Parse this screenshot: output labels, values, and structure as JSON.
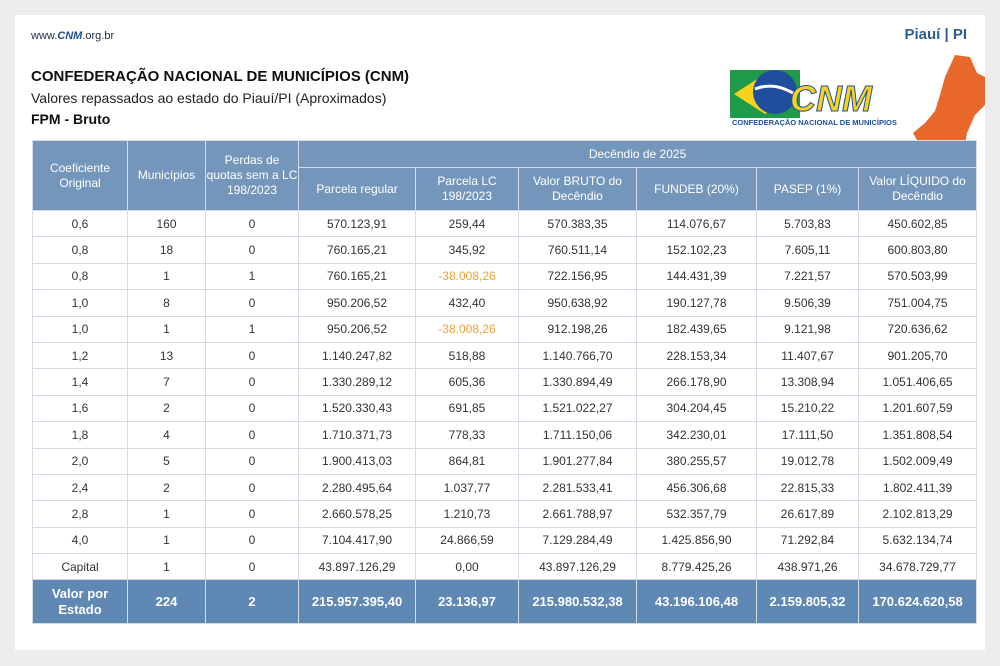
{
  "header": {
    "site": {
      "prefix": "www.",
      "brand": "CNM",
      "suffix": ".org.br"
    },
    "state": "Piauí | PI",
    "title": "CONFEDERAÇÃO NACIONAL DE MUNICÍPIOS (CNM)",
    "subtitle": "Valores repassados ao estado do Piauí/PI (Aproximados)",
    "section": "FPM - Bruto"
  },
  "logo": {
    "name": "CNM",
    "tagline": "CONFEDERAÇÃO NACIONAL DE MUNICÍPIOS"
  },
  "table": {
    "columns": [
      "Coeficiente Original",
      "Municípios",
      "Perdas de quotas sem a LC 198/2023"
    ],
    "group": "Decêndio de 2025",
    "group_columns": [
      "Parcela regular",
      "Parcela LC 198/2023",
      "Valor BRUTO do Decêndio",
      "FUNDEB (20%)",
      "PASEP (1%)",
      "Valor LÍQUIDO do Decêndio"
    ],
    "rows": [
      [
        "0,6",
        "160",
        "0",
        "570.123,91",
        "259,44",
        "570.383,35",
        "114.076,67",
        "5.703,83",
        "450.602,85"
      ],
      [
        "0,8",
        "18",
        "0",
        "760.165,21",
        "345,92",
        "760.511,14",
        "152.102,23",
        "7.605,11",
        "600.803,80"
      ],
      [
        "0,8",
        "1",
        "1",
        "760.165,21",
        "-38.008,26",
        "722.156,95",
        "144.431,39",
        "7.221,57",
        "570.503,99"
      ],
      [
        "1,0",
        "8",
        "0",
        "950.206,52",
        "432,40",
        "950.638,92",
        "190.127,78",
        "9.506,39",
        "751.004,75"
      ],
      [
        "1,0",
        "1",
        "1",
        "950.206,52",
        "-38.008,26",
        "912.198,26",
        "182.439,65",
        "9.121,98",
        "720.636,62"
      ],
      [
        "1,2",
        "13",
        "0",
        "1.140.247,82",
        "518,88",
        "1.140.766,70",
        "228.153,34",
        "11.407,67",
        "901.205,70"
      ],
      [
        "1,4",
        "7",
        "0",
        "1.330.289,12",
        "605,36",
        "1.330.894,49",
        "266.178,90",
        "13.308,94",
        "1.051.406,65"
      ],
      [
        "1,6",
        "2",
        "0",
        "1.520.330,43",
        "691,85",
        "1.521.022,27",
        "304.204,45",
        "15.210,22",
        "1.201.607,59"
      ],
      [
        "1,8",
        "4",
        "0",
        "1.710.371,73",
        "778,33",
        "1.711.150,06",
        "342.230,01",
        "17.111,50",
        "1.351.808,54"
      ],
      [
        "2,0",
        "5",
        "0",
        "1.900.413,03",
        "864,81",
        "1.901.277,84",
        "380.255,57",
        "19.012,78",
        "1.502.009,49"
      ],
      [
        "2,4",
        "2",
        "0",
        "2.280.495,64",
        "1.037,77",
        "2.281.533,41",
        "456.306,68",
        "22.815,33",
        "1.802.411,39"
      ],
      [
        "2,8",
        "1",
        "0",
        "2.660.578,25",
        "1.210,73",
        "2.661.788,97",
        "532.357,79",
        "26.617,89",
        "2.102.813,29"
      ],
      [
        "4,0",
        "1",
        "0",
        "7.104.417,90",
        "24.866,59",
        "7.129.284,49",
        "1.425.856,90",
        "71.292,84",
        "5.632.134,74"
      ],
      [
        "Capital",
        "1",
        "0",
        "43.897.126,29",
        "0,00",
        "43.897.126,29",
        "8.779.425,26",
        "438.971,26",
        "34.678.729,77"
      ]
    ],
    "total": [
      "Valor por Estado",
      "224",
      "2",
      "215.957.395,40",
      "23.136,97",
      "215.980.532,38",
      "43.196.106,48",
      "2.159.805,32",
      "170.624.620,58"
    ]
  }
}
